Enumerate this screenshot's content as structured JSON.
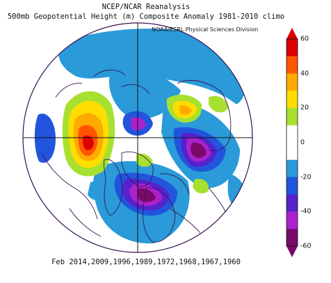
{
  "header": {
    "title_line1": "NCEP/NCAR Reanalysis",
    "title_line2": "500mb Geopotential Height (m) Composite Anomaly 1981-2010 climo",
    "credit": "NOAA/ESRL Physical Sciences Division"
  },
  "footer": {
    "composite_dates": "Feb 2014,2009,1996,1989,1972,1968,1967,1960"
  },
  "colorbar": {
    "min": -60,
    "max": 60,
    "ticks": [
      "60",
      "40",
      "20",
      "0",
      "-20",
      "-40",
      "-60"
    ],
    "colors": {
      "c60": "#dd0000",
      "c50": "#ff5500",
      "c40": "#ffaa00",
      "c30": "#ffdd00",
      "c20": "#a8e030",
      "c10": "#ffffff",
      "cm10": "#ffffff",
      "cm20": "#2a9ad8",
      "cm30": "#2255dd",
      "cm40": "#5522cc",
      "cm50": "#aa22cc",
      "cm60": "#7a0a6a"
    }
  }
}
